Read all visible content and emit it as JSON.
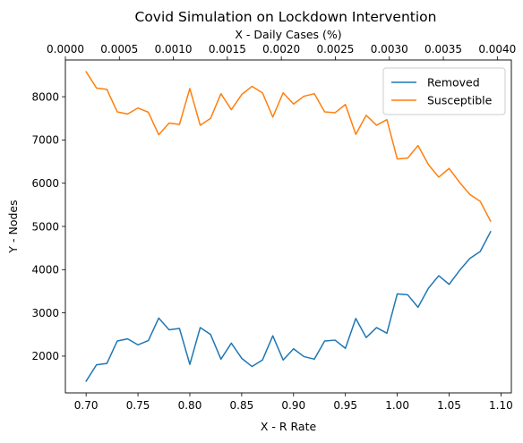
{
  "chart_data": {
    "type": "line",
    "title": "Covid Simulation on Lockdown Intervention",
    "xlabel": "X - R Rate",
    "x2label": "X - Daily Cases (%)",
    "ylabel": "Y - Nodes",
    "xlim": [
      0.68,
      1.11
    ],
    "x2lim": [
      0.0,
      0.00413
    ],
    "ylim": [
      1150,
      8850
    ],
    "x_ticks": [
      "0.70",
      "0.75",
      "0.80",
      "0.85",
      "0.90",
      "0.95",
      "1.00",
      "1.05",
      "1.10"
    ],
    "x2_ticks": [
      "0.0000",
      "0.0005",
      "0.0010",
      "0.0015",
      "0.0020",
      "0.0025",
      "0.0030",
      "0.0035",
      "0.0040"
    ],
    "y_ticks": [
      "2000",
      "3000",
      "4000",
      "5000",
      "6000",
      "7000",
      "8000"
    ],
    "grid": false,
    "legend_position": "top-right",
    "x": [
      0.7,
      0.71,
      0.72,
      0.73,
      0.74,
      0.75,
      0.76,
      0.77,
      0.78,
      0.79,
      0.8,
      0.81,
      0.82,
      0.83,
      0.84,
      0.85,
      0.86,
      0.87,
      0.88,
      0.89,
      0.9,
      0.91,
      0.92,
      0.93,
      0.94,
      0.95,
      0.96,
      0.97,
      0.98,
      0.99,
      1.0,
      1.01,
      1.02,
      1.03,
      1.04,
      1.05,
      1.06,
      1.07,
      1.08,
      1.09
    ],
    "series": [
      {
        "name": "Removed",
        "color": "#1f77b4",
        "values": [
          1420,
          1800,
          1830,
          2350,
          2400,
          2260,
          2360,
          2880,
          2610,
          2640,
          1810,
          2660,
          2500,
          1930,
          2300,
          1950,
          1760,
          1910,
          2470,
          1910,
          2170,
          1990,
          1930,
          2350,
          2370,
          2180,
          2870,
          2430,
          2660,
          2530,
          3440,
          3420,
          3130,
          3570,
          3860,
          3660,
          3980,
          4260,
          4420,
          4880
        ]
      },
      {
        "name": "Susceptible",
        "color": "#ff7f0e",
        "values": [
          8580,
          8200,
          8170,
          7650,
          7600,
          7740,
          7640,
          7120,
          7390,
          7360,
          8190,
          7340,
          7500,
          8070,
          7700,
          8050,
          8240,
          8090,
          7530,
          8090,
          7830,
          8010,
          8070,
          7650,
          7630,
          7820,
          7130,
          7570,
          7340,
          7470,
          6560,
          6580,
          6870,
          6430,
          6140,
          6340,
          6020,
          5740,
          5580,
          5120
        ]
      }
    ]
  }
}
